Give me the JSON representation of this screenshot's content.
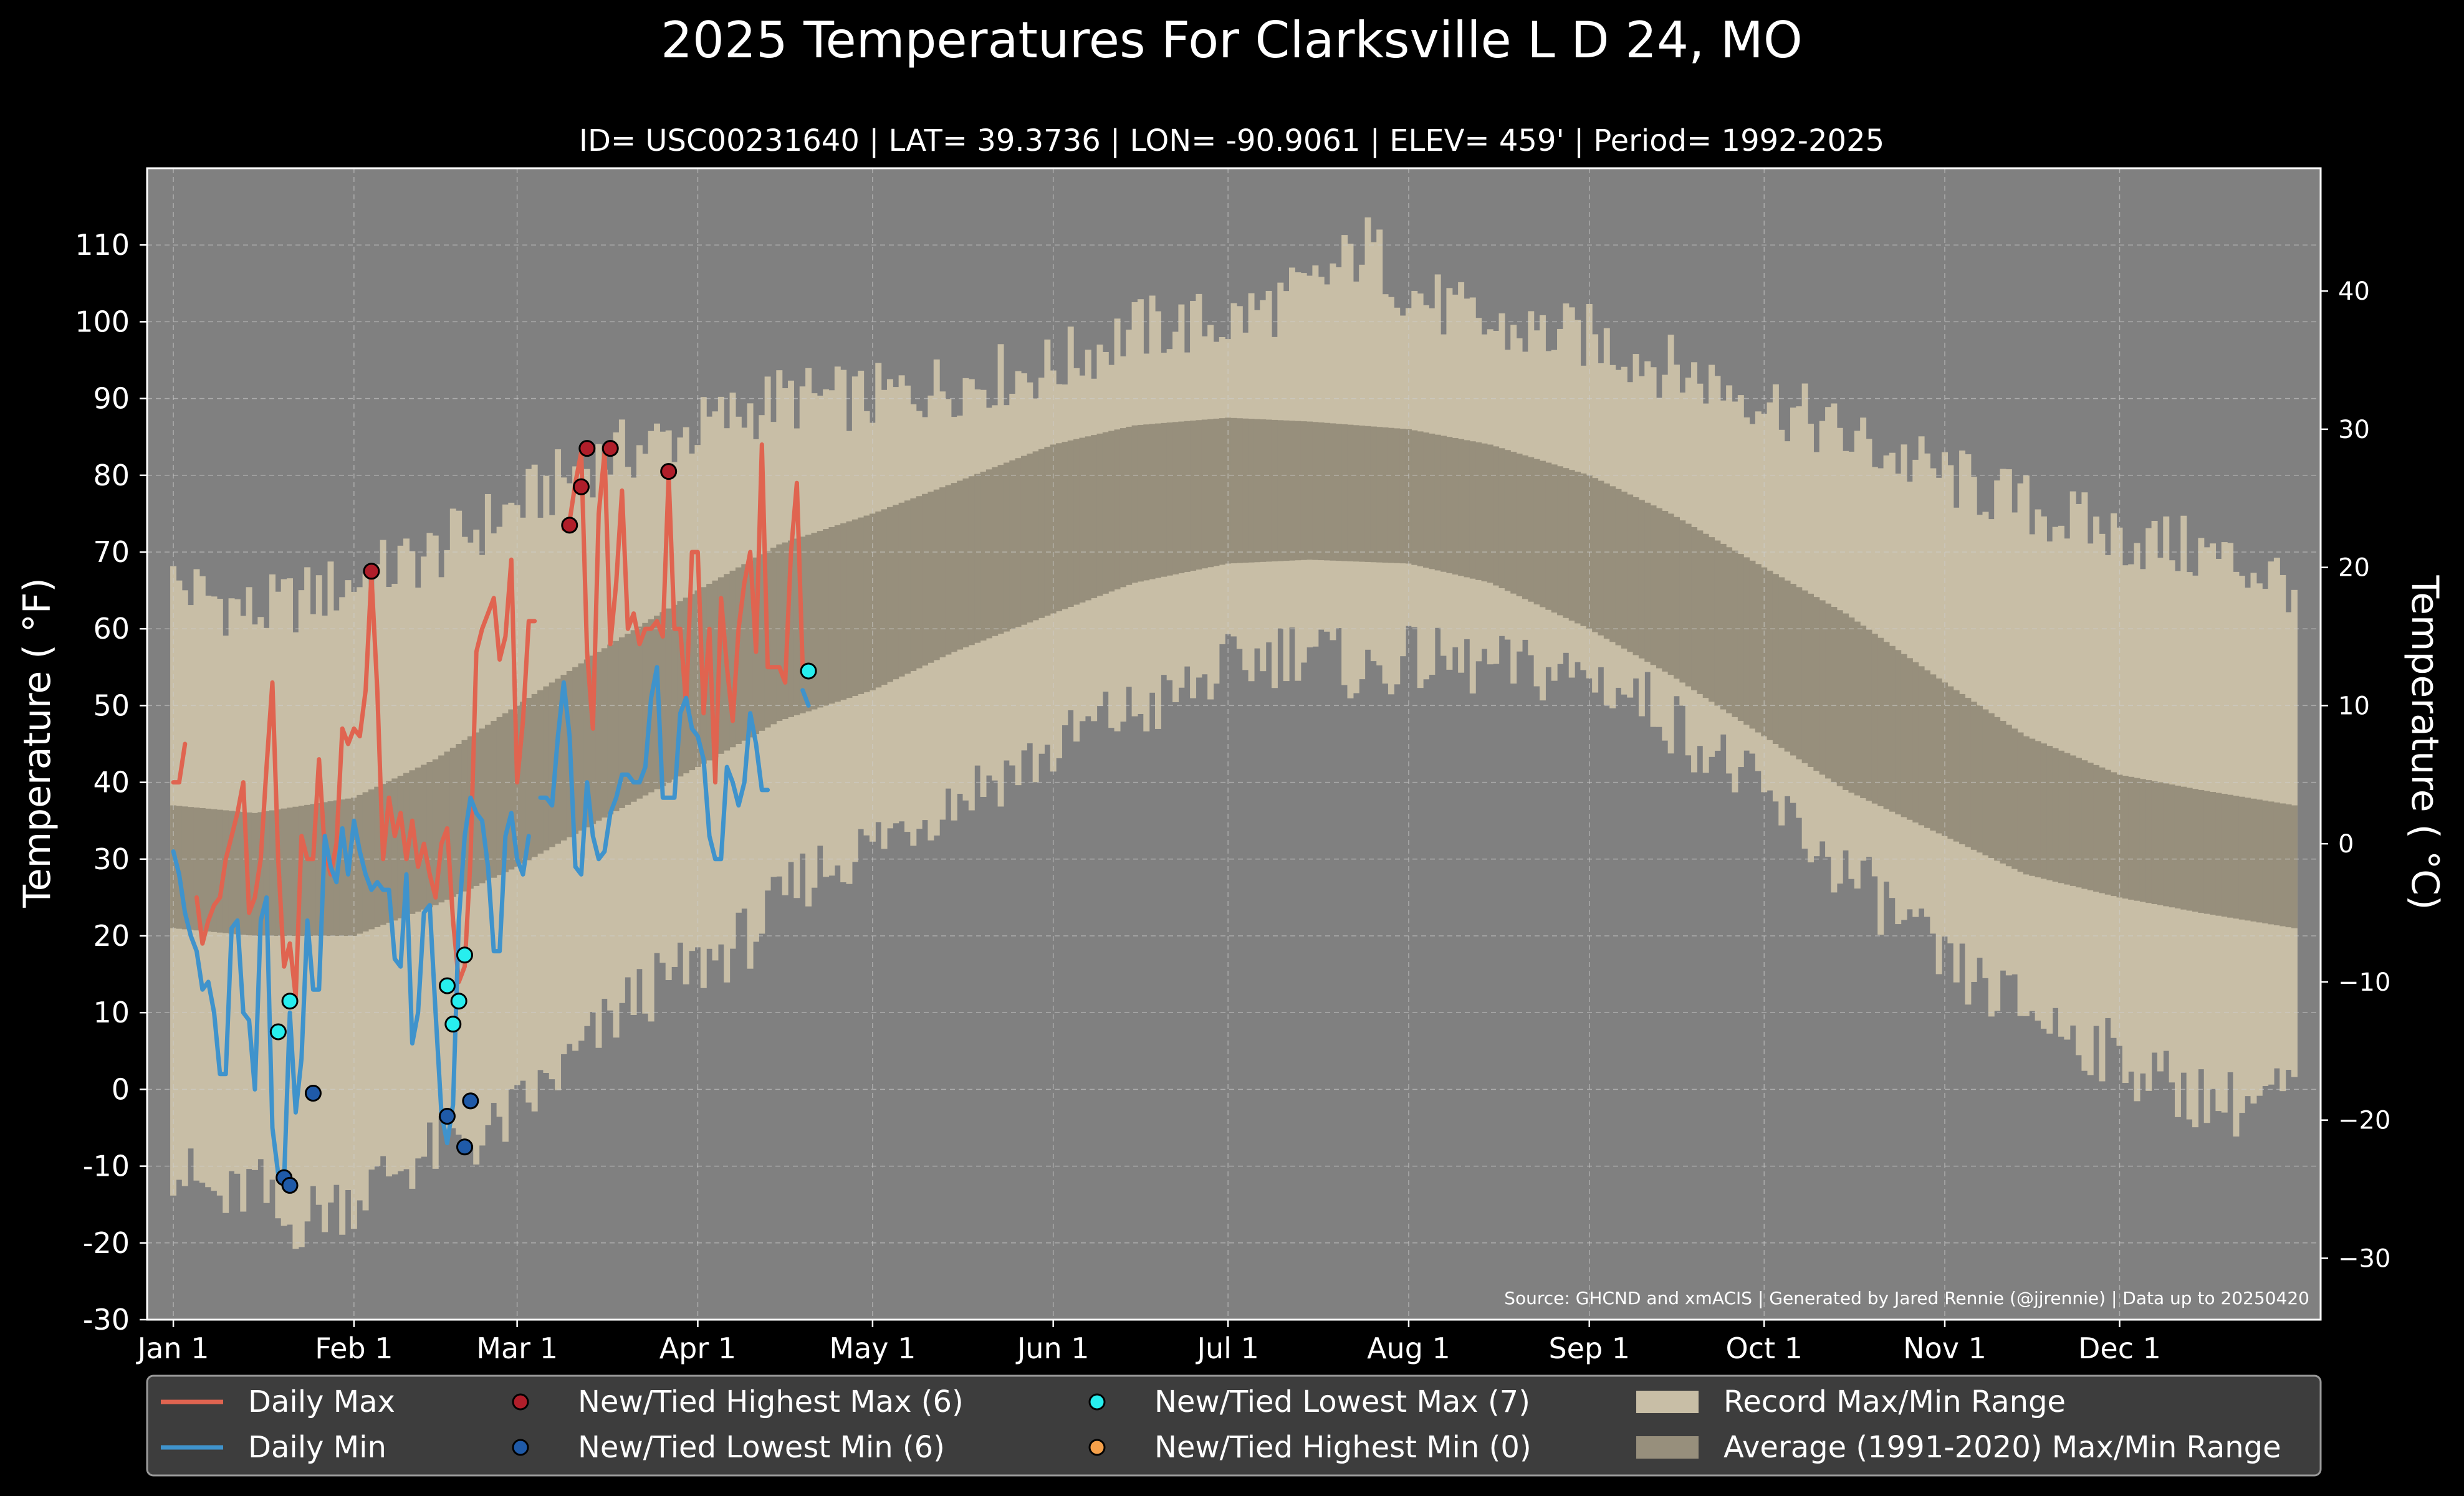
{
  "chart_data": {
    "type": "line",
    "title": "2025 Temperatures For Clarksville L D 24, MO",
    "subtitle": "ID= USC00231640 | LAT= 39.3736 | LON= -90.9061 | ELEV= 459' | Period= 1992-2025",
    "ylabel": "Temperature ($^\\circ$F)",
    "ylabel_display": "Temperature ( °F)",
    "y2label_display": "Temperature ( °C)",
    "source": "Source: GHCND and xmACIS | Generated by Jared Rennie (@jjrennie) | Data up to 20250420",
    "ylim": [
      -30,
      120
    ],
    "y_ticks": [
      "110",
      "100",
      "90",
      "80",
      "70",
      "60",
      "50",
      "40",
      "30",
      "20",
      "10",
      "0",
      "-10",
      "-20",
      "-30"
    ],
    "y_tick_values": [
      110,
      100,
      90,
      80,
      70,
      60,
      50,
      40,
      30,
      20,
      10,
      0,
      -10,
      -20,
      -30
    ],
    "y2_ticks": [
      "40",
      "30",
      "20",
      "10",
      "0",
      "−10",
      "−20",
      "−30"
    ],
    "y2_tick_values": [
      40,
      30,
      20,
      10,
      0,
      -10,
      -20,
      -30
    ],
    "x_ticks": [
      "Jan 1",
      "Feb 1",
      "Mar 1",
      "Apr 1",
      "May 1",
      "Jun 1",
      "Jul 1",
      "Aug 1",
      "Sep 1",
      "Oct 1",
      "Nov 1",
      "Dec 1"
    ],
    "x_tick_days": [
      1,
      32,
      60,
      91,
      121,
      152,
      182,
      213,
      244,
      274,
      305,
      335
    ],
    "x_days": 365,
    "grid": true,
    "legend_position": "bottom",
    "colors": {
      "background": "#000000",
      "plot_bg": "#808080",
      "record_band": "#c8bea6",
      "average_band": "#978f7c",
      "daily_max": "#e06450",
      "daily_min": "#3f93cc",
      "highest_max_marker": "#b01e2a",
      "lowest_min_marker": "#1f5aa8",
      "lowest_max_marker": "#27eeee",
      "highest_min_marker": "#f5a04a",
      "legend_bg": "#3d3d3d"
    },
    "legend": [
      {
        "label": "Daily Max",
        "kind": "line",
        "color": "#e06450"
      },
      {
        "label": "Daily Min",
        "kind": "line",
        "color": "#3f93cc"
      },
      {
        "label": "New/Tied Highest Max (6)",
        "kind": "marker",
        "color": "#b01e2a"
      },
      {
        "label": "New/Tied Lowest Min (6)",
        "kind": "marker",
        "color": "#1f5aa8"
      },
      {
        "label": "New/Tied Lowest Max (7)",
        "kind": "marker",
        "color": "#27eeee"
      },
      {
        "label": "New/Tied Highest Min (0)",
        "kind": "marker",
        "color": "#f5a04a"
      },
      {
        "label": "Record Max/Min Range",
        "kind": "patch",
        "color": "#c8bea6"
      },
      {
        "label": "Average (1991-2020) Max/Min Range",
        "kind": "patch",
        "color": "#978f7c"
      }
    ],
    "record_high_anchors": [
      [
        1,
        66
      ],
      [
        15,
        62
      ],
      [
        32,
        66
      ],
      [
        46,
        70
      ],
      [
        60,
        76
      ],
      [
        74,
        82
      ],
      [
        91,
        86
      ],
      [
        105,
        90
      ],
      [
        121,
        90
      ],
      [
        135,
        92
      ],
      [
        152,
        94
      ],
      [
        166,
        99
      ],
      [
        182,
        100
      ],
      [
        196,
        104
      ],
      [
        206,
        110
      ],
      [
        213,
        104
      ],
      [
        227,
        99
      ],
      [
        244,
        98
      ],
      [
        258,
        94
      ],
      [
        274,
        90
      ],
      [
        288,
        85
      ],
      [
        305,
        80
      ],
      [
        319,
        76
      ],
      [
        335,
        72
      ],
      [
        349,
        70
      ],
      [
        365,
        66
      ]
    ],
    "record_low_anchors": [
      [
        1,
        -10
      ],
      [
        10,
        -15
      ],
      [
        15,
        -12
      ],
      [
        20,
        -18
      ],
      [
        25,
        -16
      ],
      [
        32,
        -14
      ],
      [
        40,
        -10
      ],
      [
        46,
        -8
      ],
      [
        55,
        -6
      ],
      [
        60,
        -3
      ],
      [
        70,
        4
      ],
      [
        80,
        12
      ],
      [
        91,
        16
      ],
      [
        100,
        20
      ],
      [
        110,
        28
      ],
      [
        121,
        32
      ],
      [
        130,
        36
      ],
      [
        140,
        40
      ],
      [
        152,
        44
      ],
      [
        160,
        48
      ],
      [
        170,
        50
      ],
      [
        182,
        55
      ],
      [
        196,
        58
      ],
      [
        205,
        54
      ],
      [
        213,
        56
      ],
      [
        227,
        55
      ],
      [
        244,
        54
      ],
      [
        255,
        50
      ],
      [
        265,
        44
      ],
      [
        274,
        38
      ],
      [
        285,
        30
      ],
      [
        295,
        24
      ],
      [
        305,
        16
      ],
      [
        315,
        12
      ],
      [
        325,
        8
      ],
      [
        335,
        4
      ],
      [
        345,
        0
      ],
      [
        355,
        -2
      ],
      [
        365,
        0
      ]
    ],
    "avg_high_anchors": [
      [
        1,
        37
      ],
      [
        15,
        36
      ],
      [
        32,
        38
      ],
      [
        46,
        43
      ],
      [
        60,
        50
      ],
      [
        74,
        57
      ],
      [
        91,
        65
      ],
      [
        105,
        71
      ],
      [
        121,
        75
      ],
      [
        135,
        79
      ],
      [
        152,
        84
      ],
      [
        166,
        86.5
      ],
      [
        182,
        87.5
      ],
      [
        196,
        87
      ],
      [
        213,
        86
      ],
      [
        227,
        84
      ],
      [
        244,
        80
      ],
      [
        258,
        75
      ],
      [
        274,
        68
      ],
      [
        288,
        62
      ],
      [
        305,
        53
      ],
      [
        319,
        46
      ],
      [
        335,
        41
      ],
      [
        349,
        39
      ],
      [
        365,
        37
      ]
    ],
    "avg_low_anchors": [
      [
        1,
        21
      ],
      [
        15,
        20
      ],
      [
        32,
        20
      ],
      [
        46,
        24
      ],
      [
        60,
        29
      ],
      [
        74,
        35
      ],
      [
        91,
        42
      ],
      [
        105,
        48
      ],
      [
        121,
        52
      ],
      [
        135,
        57
      ],
      [
        152,
        62
      ],
      [
        166,
        66
      ],
      [
        182,
        68.5
      ],
      [
        196,
        69
      ],
      [
        213,
        68.5
      ],
      [
        227,
        66
      ],
      [
        244,
        60
      ],
      [
        258,
        54
      ],
      [
        274,
        46
      ],
      [
        288,
        39
      ],
      [
        305,
        33
      ],
      [
        319,
        28
      ],
      [
        335,
        25
      ],
      [
        349,
        23
      ],
      [
        365,
        21
      ]
    ],
    "series": [
      {
        "name": "Daily Max",
        "x": [
          1,
          2,
          3,
          4,
          5,
          6,
          7,
          8,
          9,
          10,
          11,
          12,
          13,
          14,
          15,
          16,
          17,
          18,
          19,
          20,
          21,
          22,
          23,
          24,
          25,
          26,
          27,
          28,
          29,
          30,
          31,
          32,
          33,
          34,
          35,
          36,
          37,
          38,
          39,
          40,
          41,
          42,
          43,
          44,
          45,
          46,
          47,
          48,
          49,
          50,
          51,
          52,
          53,
          54,
          55,
          56,
          57,
          58,
          59,
          60,
          61,
          62,
          63,
          64,
          65,
          66,
          67,
          68,
          69,
          70,
          71,
          72,
          73,
          74,
          75,
          76,
          77,
          78,
          79,
          80,
          81,
          82,
          83,
          84,
          85,
          86,
          87,
          88,
          89,
          90,
          91,
          92,
          93,
          94,
          95,
          96,
          97,
          98,
          99,
          100,
          101,
          102,
          103,
          104,
          105,
          106,
          107,
          108,
          109,
          110
        ],
        "y": [
          40,
          40,
          45,
          null,
          25,
          19,
          22,
          24,
          25,
          30,
          33,
          36,
          40,
          23,
          25,
          30,
          42,
          53,
          30,
          16,
          19,
          12,
          33,
          30,
          30,
          43,
          31,
          28,
          32,
          47,
          45,
          47,
          46,
          52,
          67,
          52,
          30,
          38,
          33,
          36,
          30,
          35,
          29,
          32,
          28,
          25,
          32,
          34,
          22,
          14,
          16,
          30,
          57,
          60,
          62,
          64,
          56,
          59,
          69,
          40,
          48,
          61,
          61,
          null,
          53,
          null,
          null,
          73,
          74,
          79,
          83,
          57,
          47,
          75,
          83,
          58,
          66,
          78,
          60,
          62,
          58,
          60,
          60,
          61,
          59,
          80,
          60,
          60,
          50,
          70,
          70,
          49,
          60,
          40,
          64,
          55,
          48,
          60,
          66,
          70,
          57,
          84,
          55,
          55,
          55,
          53,
          70,
          79,
          55,
          null
        ]
      },
      {
        "name": "Daily Min",
        "x": [
          1,
          2,
          3,
          4,
          5,
          6,
          7,
          8,
          9,
          10,
          11,
          12,
          13,
          14,
          15,
          16,
          17,
          18,
          19,
          20,
          21,
          22,
          23,
          24,
          25,
          26,
          27,
          28,
          29,
          30,
          31,
          32,
          33,
          34,
          35,
          36,
          37,
          38,
          39,
          40,
          41,
          42,
          43,
          44,
          45,
          46,
          47,
          48,
          49,
          50,
          51,
          52,
          53,
          54,
          55,
          56,
          57,
          58,
          59,
          60,
          61,
          62,
          63,
          64,
          65,
          66,
          67,
          68,
          69,
          70,
          71,
          72,
          73,
          74,
          75,
          76,
          77,
          78,
          79,
          80,
          81,
          82,
          83,
          84,
          85,
          86,
          87,
          88,
          89,
          90,
          91,
          92,
          93,
          94,
          95,
          96,
          97,
          98,
          99,
          100,
          101,
          102,
          103,
          104,
          105,
          106,
          107,
          108,
          109,
          110
        ],
        "y": [
          31,
          28,
          23,
          20,
          18,
          13,
          14,
          10,
          2,
          2,
          21,
          22,
          10,
          9,
          0,
          22,
          25,
          -5,
          -11,
          -12,
          10,
          -3,
          4,
          22,
          13,
          13,
          33,
          29,
          27,
          34,
          28,
          35,
          31,
          28,
          26,
          27,
          26,
          26,
          17,
          16,
          28,
          6,
          10,
          23,
          24,
          10,
          -3,
          -7,
          -2,
          22,
          33,
          38,
          36,
          35,
          29,
          18,
          18,
          33,
          36,
          30,
          28,
          33,
          null,
          38,
          38,
          37,
          46,
          53,
          46,
          29,
          28,
          40,
          33,
          30,
          31,
          36,
          38,
          41,
          41,
          40,
          40,
          42,
          51,
          55,
          38,
          38,
          38,
          49,
          51,
          47,
          46,
          43,
          33,
          30,
          30,
          42,
          40,
          37,
          40,
          49,
          45,
          39,
          39,
          null,
          null,
          null,
          null,
          null,
          52,
          50
        ]
      }
    ],
    "markers": [
      {
        "label": "New/Tied Highest Max (6)",
        "color": "#b01e2a",
        "points": [
          [
            35,
            67.5
          ],
          [
            69,
            73.5
          ],
          [
            71,
            78.5
          ],
          [
            72,
            83.5
          ],
          [
            76,
            83.5
          ],
          [
            86,
            80.5
          ]
        ]
      },
      {
        "label": "New/Tied Lowest Min (6)",
        "color": "#1f5aa8",
        "points": [
          [
            20,
            -11.5
          ],
          [
            21,
            -12.5
          ],
          [
            25,
            -0.5
          ],
          [
            48,
            -3.5
          ],
          [
            51,
            -7.5
          ],
          [
            52,
            -1.5
          ]
        ]
      },
      {
        "label": "New/Tied Lowest Max (7)",
        "color": "#27eeee",
        "points": [
          [
            19,
            7.5
          ],
          [
            21,
            11.5
          ],
          [
            48,
            13.5
          ],
          [
            49,
            8.5
          ],
          [
            50,
            11.5
          ],
          [
            51,
            17.5
          ],
          [
            110,
            54.5
          ]
        ]
      },
      {
        "label": "New/Tied Highest Min (0)",
        "color": "#f5a04a",
        "points": []
      }
    ]
  }
}
